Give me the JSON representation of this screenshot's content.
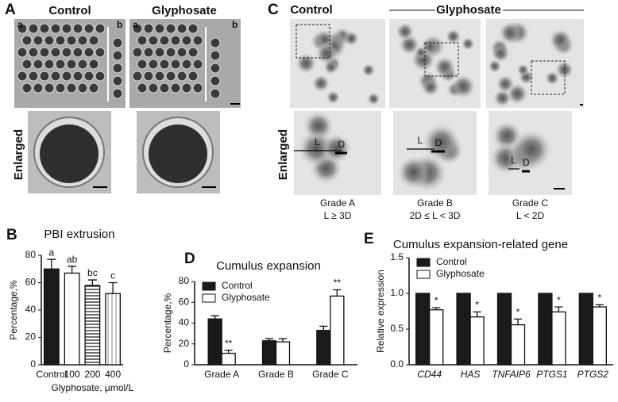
{
  "figure": {
    "panel_a": {
      "letter": "A",
      "control": "Control",
      "glyphosate": "Glyphosate",
      "sub_a": "a",
      "sub_b": "b",
      "enlarged": "Enlarged"
    },
    "panel_c": {
      "letter": "C",
      "control": "Control",
      "glyphosate": "Glyphosate",
      "enlarged": "Enlarged",
      "l": "L",
      "d": "D",
      "grades": [
        {
          "name": "Grade A",
          "rule": "L ≥ 3D"
        },
        {
          "name": "Grade B",
          "rule": "2D ≤ L < 3D"
        },
        {
          "name": "Grade C",
          "rule": "L < 2D"
        }
      ]
    }
  },
  "chart_data": [
    {
      "type": "bar",
      "panel_label": "B",
      "title": "PBI extrusion",
      "ylabel": "Percentage,%",
      "xlabel": "Glyphosate, μmol/L",
      "categories": [
        "Control",
        "100",
        "200",
        "400"
      ],
      "values": [
        70,
        67,
        58,
        52
      ],
      "errors": [
        7,
        5,
        4,
        8
      ],
      "annotations": [
        "a",
        "ab",
        "bc",
        "c"
      ],
      "colors": [
        "#1a1a1a",
        "#ffffff",
        "#ffffff",
        "#ffffff"
      ],
      "hatch": [
        "none",
        "none",
        "horizontal",
        "vertical"
      ],
      "ylim": [
        0,
        80
      ],
      "yticks": [
        0,
        20,
        40,
        60,
        80
      ]
    },
    {
      "type": "bar",
      "panel_label": "D",
      "title": "Cumulus expansion",
      "ylabel": "Percentage,%",
      "legend": "top-left",
      "categories": [
        "Grade A",
        "Grade B",
        "Grade C"
      ],
      "series": [
        {
          "name": "Control",
          "color": "#1a1a1a",
          "values": [
            44,
            23,
            33
          ],
          "errors": [
            3,
            2,
            4
          ]
        },
        {
          "name": "Glyphosate",
          "color": "#ffffff",
          "values": [
            11,
            22,
            66
          ],
          "errors": [
            3,
            3,
            6
          ],
          "annotations": [
            "**",
            null,
            "**"
          ]
        }
      ],
      "ylim": [
        0,
        80
      ],
      "yticks": [
        0,
        20,
        40,
        60,
        80
      ]
    },
    {
      "type": "bar",
      "panel_label": "E",
      "title": "Cumulus expansion-related gene",
      "ylabel": "Relative expression",
      "legend": "top-left",
      "italic_categories": true,
      "categories": [
        "CD44",
        "HAS",
        "TNFAIP6",
        "PTGS1",
        "PTGS2"
      ],
      "series": [
        {
          "name": "Control",
          "color": "#1a1a1a",
          "values": [
            1,
            1,
            1,
            1,
            1
          ]
        },
        {
          "name": "Glyphosate",
          "color": "#ffffff",
          "values": [
            0.77,
            0.67,
            0.56,
            0.74,
            0.81
          ],
          "errors": [
            0.03,
            0.07,
            0.08,
            0.07,
            0.03
          ],
          "annotations": [
            "*",
            "*",
            "*",
            "*",
            "*"
          ]
        }
      ],
      "ylim": [
        0,
        1.5
      ],
      "yticks": [
        {
          "value": 0,
          "label": "0.0"
        },
        {
          "value": 0.5,
          "label": "0.5"
        },
        {
          "value": 1,
          "label": "1.0"
        },
        {
          "value": 1.5,
          "label": "1.5"
        }
      ]
    }
  ]
}
